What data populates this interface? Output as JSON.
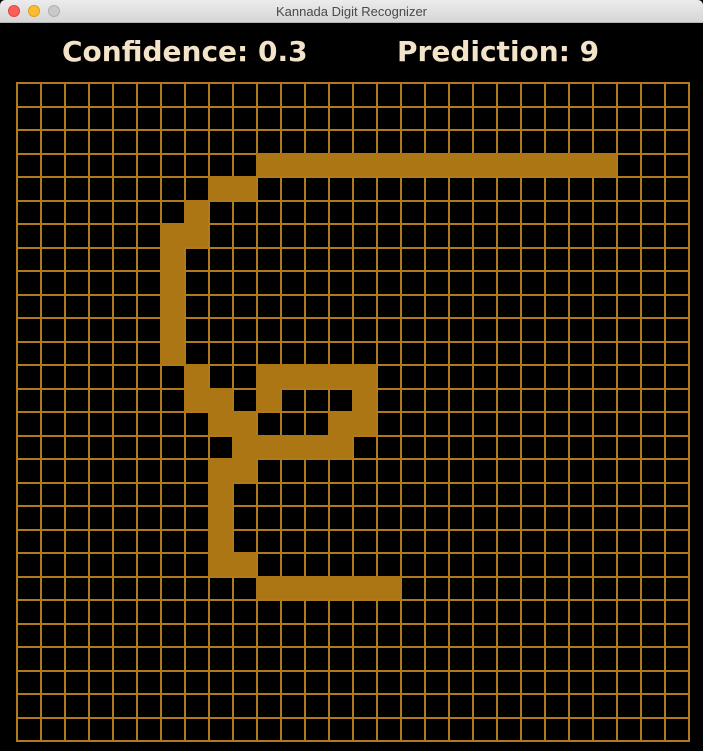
{
  "window": {
    "title": "Kannada Digit Recognizer"
  },
  "header": {
    "confidence_label": "Confidence: 0.3",
    "prediction_label": "Prediction: 9"
  },
  "colors": {
    "background": "#000000",
    "grid_line": "#b07a1a",
    "ink": "#ad7614",
    "text": "#f3e3c8"
  },
  "canvas": {
    "rows": 28,
    "cols": 28,
    "filled_cells": [
      [
        3,
        10
      ],
      [
        3,
        11
      ],
      [
        3,
        12
      ],
      [
        3,
        13
      ],
      [
        3,
        14
      ],
      [
        3,
        15
      ],
      [
        3,
        16
      ],
      [
        3,
        17
      ],
      [
        3,
        18
      ],
      [
        3,
        19
      ],
      [
        3,
        20
      ],
      [
        3,
        21
      ],
      [
        3,
        22
      ],
      [
        3,
        23
      ],
      [
        3,
        24
      ],
      [
        4,
        8
      ],
      [
        4,
        9
      ],
      [
        5,
        7
      ],
      [
        6,
        6
      ],
      [
        6,
        7
      ],
      [
        7,
        6
      ],
      [
        8,
        6
      ],
      [
        9,
        6
      ],
      [
        10,
        6
      ],
      [
        11,
        6
      ],
      [
        12,
        7
      ],
      [
        12,
        10
      ],
      [
        12,
        11
      ],
      [
        12,
        12
      ],
      [
        12,
        13
      ],
      [
        12,
        14
      ],
      [
        13,
        7
      ],
      [
        13,
        8
      ],
      [
        13,
        10
      ],
      [
        13,
        14
      ],
      [
        14,
        8
      ],
      [
        14,
        9
      ],
      [
        14,
        13
      ],
      [
        14,
        14
      ],
      [
        15,
        9
      ],
      [
        15,
        10
      ],
      [
        15,
        11
      ],
      [
        15,
        12
      ],
      [
        15,
        13
      ],
      [
        16,
        8
      ],
      [
        16,
        9
      ],
      [
        17,
        8
      ],
      [
        18,
        8
      ],
      [
        19,
        8
      ],
      [
        20,
        8
      ],
      [
        20,
        9
      ],
      [
        21,
        10
      ],
      [
        21,
        11
      ],
      [
        21,
        12
      ],
      [
        21,
        13
      ],
      [
        21,
        14
      ],
      [
        21,
        15
      ]
    ]
  }
}
